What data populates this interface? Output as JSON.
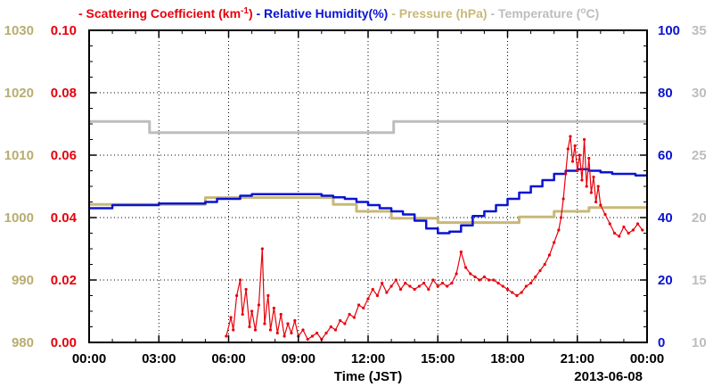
{
  "chart_data": {
    "type": "line",
    "x_label": "Time (JST)",
    "date_label": "2013-06-08",
    "x_ticks": [
      "00:00",
      "03:00",
      "06:00",
      "09:00",
      "12:00",
      "15:00",
      "18:00",
      "21:00",
      "00:00"
    ],
    "x_range_hours": [
      0,
      24
    ],
    "grid": true,
    "legend_placement": "top",
    "legend": [
      {
        "dash": "- ",
        "text": "Scattering Coefficient (km",
        "sup": "-1",
        "suffix": ")",
        "color": "#e8000b"
      },
      {
        "dash": " - ",
        "text": "Relative Humidity(%)",
        "color": "#0a14d2"
      },
      {
        "dash": " - ",
        "text": "Pressure (hPa)",
        "color": "#c8b878"
      },
      {
        "dash": " - ",
        "text": "Temperature (",
        "sup": "o",
        "suffix": "C)",
        "color": "#bdbdbd"
      }
    ],
    "axes": {
      "pressure": {
        "ticks": [
          "980",
          "990",
          "1000",
          "1010",
          "1020",
          "1030"
        ],
        "range": [
          980,
          1030
        ],
        "color": "#b8ad70"
      },
      "scattering": {
        "ticks": [
          "0.00",
          "0.02",
          "0.04",
          "0.06",
          "0.08",
          "0.10"
        ],
        "range": [
          0,
          0.1
        ],
        "color": "#e8000b"
      },
      "humidity": {
        "ticks": [
          "0",
          "20",
          "40",
          "60",
          "80",
          "100"
        ],
        "range": [
          0,
          100
        ],
        "color": "#0a14d2"
      },
      "temperature": {
        "ticks": [
          "10",
          "15",
          "20",
          "25",
          "30",
          "35"
        ],
        "range": [
          10,
          35
        ],
        "color": "#bdbdbd"
      }
    },
    "series": [
      {
        "name": "Temperature",
        "axis": "temperature",
        "color": "#bdbdbd",
        "step": true,
        "x": [
          0,
          2.6,
          2.6,
          13.1,
          13.1,
          24
        ],
        "y": [
          27.7,
          27.7,
          26.8,
          26.8,
          27.7,
          27.7
        ]
      },
      {
        "name": "Pressure",
        "axis": "pressure",
        "color": "#c8b878",
        "step": true,
        "x": [
          0,
          5.0,
          5.0,
          10.5,
          10.5,
          11.5,
          11.5,
          13.0,
          13.0,
          15.0,
          15.0,
          18.5,
          18.5,
          20.0,
          20.0,
          21.5,
          21.5,
          24
        ],
        "y": [
          1002.1,
          1002.1,
          1003.2,
          1003.2,
          1002.1,
          1002.1,
          1001.0,
          1001.0,
          999.9,
          999.9,
          999.2,
          999.2,
          1000.1,
          1000.1,
          1001.0,
          1001.0,
          1001.6,
          1001.6
        ]
      },
      {
        "name": "Relative Humidity",
        "axis": "humidity",
        "color": "#0a14d2",
        "step": true,
        "x": [
          0,
          1.0,
          2.0,
          3.0,
          4.0,
          5.0,
          5.5,
          6.0,
          6.5,
          7.0,
          7.5,
          8.0,
          9.0,
          10.0,
          10.5,
          11.0,
          11.5,
          12.0,
          12.5,
          13.0,
          13.5,
          14.0,
          14.5,
          15.0,
          15.5,
          16.0,
          16.5,
          17.0,
          17.5,
          18.0,
          18.5,
          19.0,
          19.5,
          20.0,
          20.5,
          21.0,
          21.5,
          22.0,
          22.5,
          23.0,
          23.5,
          24.0
        ],
        "y": [
          43,
          44,
          44,
          44.5,
          44.5,
          45,
          46,
          46,
          47,
          47.5,
          47.5,
          47.5,
          47.5,
          47,
          46.5,
          46,
          45,
          44,
          43,
          42,
          41,
          39,
          36.5,
          35,
          35.5,
          37.5,
          40.5,
          42,
          44,
          46,
          48,
          50,
          52,
          54,
          55,
          55.5,
          55,
          54.5,
          54,
          54,
          53.5,
          53.5
        ]
      },
      {
        "name": "Scattering Coefficient",
        "axis": "scattering",
        "color": "#e8000b",
        "x": [
          5.9,
          6.1,
          6.2,
          6.35,
          6.5,
          6.6,
          6.75,
          6.9,
          7.0,
          7.15,
          7.3,
          7.45,
          7.55,
          7.7,
          7.8,
          7.95,
          8.1,
          8.25,
          8.4,
          8.55,
          8.7,
          8.85,
          9.0,
          9.2,
          9.4,
          9.6,
          9.8,
          10.0,
          10.2,
          10.4,
          10.6,
          10.8,
          11.0,
          11.2,
          11.4,
          11.6,
          11.8,
          12.0,
          12.2,
          12.4,
          12.6,
          12.8,
          13.0,
          13.2,
          13.4,
          13.6,
          13.8,
          14.0,
          14.2,
          14.4,
          14.6,
          14.8,
          15.0,
          15.2,
          15.4,
          15.6,
          15.8,
          16.0,
          16.2,
          16.4,
          16.6,
          16.8,
          17.0,
          17.2,
          17.4,
          17.6,
          17.8,
          18.0,
          18.2,
          18.4,
          18.6,
          18.8,
          19.0,
          19.2,
          19.4,
          19.6,
          19.8,
          20.0,
          20.2,
          20.3,
          20.4,
          20.5,
          20.6,
          20.7,
          20.8,
          20.9,
          21.0,
          21.1,
          21.2,
          21.3,
          21.4,
          21.5,
          21.6,
          21.7,
          21.8,
          21.9,
          22.0,
          22.2,
          22.4,
          22.6,
          22.8,
          23.0,
          23.2,
          23.4,
          23.6,
          23.8
        ],
        "y": [
          0.002,
          0.008,
          0.004,
          0.015,
          0.02,
          0.009,
          0.017,
          0.005,
          0.01,
          0.004,
          0.012,
          0.03,
          0.006,
          0.015,
          0.004,
          0.011,
          0.003,
          0.009,
          0.002,
          0.006,
          0.003,
          0.007,
          0.002,
          0.004,
          0.001,
          0.002,
          0.003,
          0.001,
          0.003,
          0.005,
          0.004,
          0.007,
          0.006,
          0.009,
          0.008,
          0.012,
          0.011,
          0.014,
          0.017,
          0.015,
          0.019,
          0.016,
          0.018,
          0.02,
          0.017,
          0.019,
          0.018,
          0.017,
          0.018,
          0.019,
          0.017,
          0.02,
          0.018,
          0.019,
          0.018,
          0.019,
          0.022,
          0.029,
          0.024,
          0.022,
          0.021,
          0.02,
          0.021,
          0.02,
          0.02,
          0.019,
          0.018,
          0.017,
          0.016,
          0.015,
          0.016,
          0.018,
          0.019,
          0.021,
          0.023,
          0.025,
          0.028,
          0.032,
          0.036,
          0.04,
          0.046,
          0.054,
          0.062,
          0.066,
          0.058,
          0.063,
          0.055,
          0.06,
          0.052,
          0.065,
          0.05,
          0.059,
          0.048,
          0.053,
          0.045,
          0.05,
          0.044,
          0.041,
          0.038,
          0.035,
          0.034,
          0.037,
          0.035,
          0.036,
          0.038,
          0.036
        ]
      }
    ]
  }
}
